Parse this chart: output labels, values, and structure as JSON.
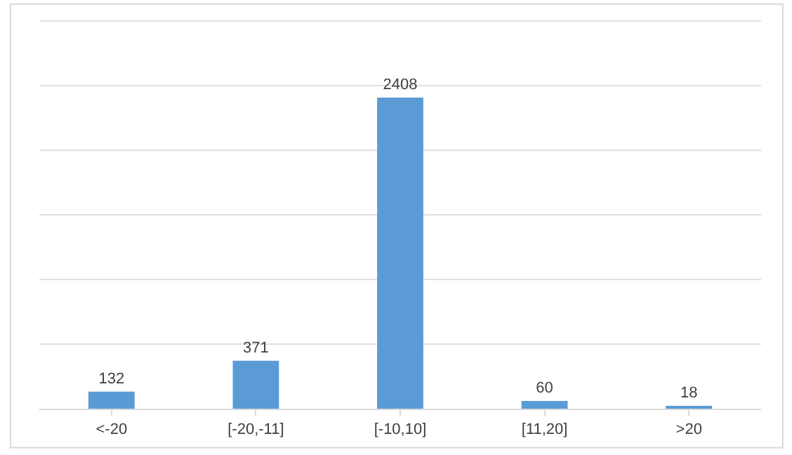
{
  "chart_data": {
    "type": "bar",
    "categories": [
      "<-20",
      "[-20,-11]",
      "[-10,10]",
      "[11,20]",
      ">20"
    ],
    "values": [
      132,
      371,
      2408,
      60,
      18
    ],
    "color": "#5b9bd5",
    "yticks": [
      {
        "value": 0,
        "label": null
      },
      {
        "value": 500,
        "label": null
      },
      {
        "value": 1000,
        "label": null
      },
      {
        "value": 1500,
        "label": null
      },
      {
        "value": 2000,
        "label": null
      },
      {
        "value": 2500,
        "label": null
      },
      {
        "value": 3000,
        "label": null
      }
    ],
    "grid": "y",
    "data_labels": true,
    "tick_labels": "x",
    "legend": false
  }
}
